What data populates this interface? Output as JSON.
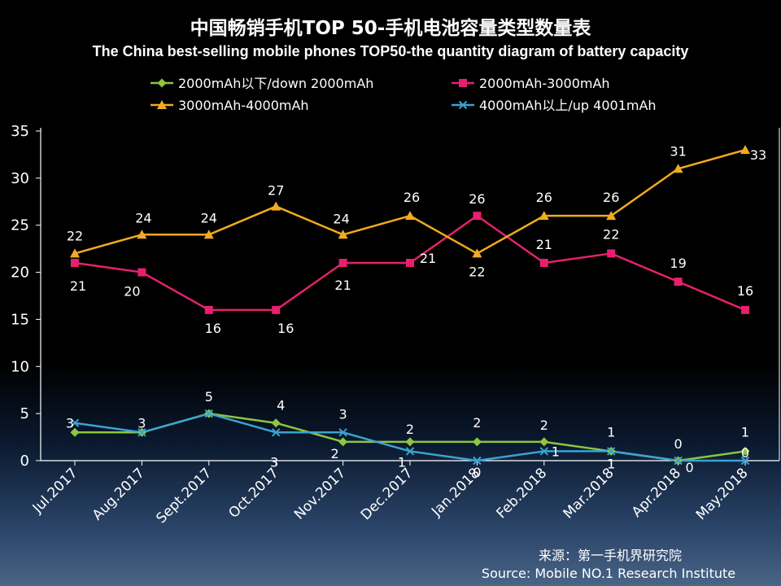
{
  "chart_data": {
    "type": "line",
    "title": "中国畅销手机TOP 50-手机电池容量类型数量表",
    "subtitle": "The China best-selling mobile phones TOP50-the quantity diagram of battery capacity",
    "categories": [
      "Jul.2017",
      "Aug.2017",
      "Sept.2017",
      "Oct.2017",
      "Nov.2017",
      "Dec.2017",
      "Jan.2018",
      "Feb.2018",
      "Mar.2018",
      "Apr.2018",
      "May.2018"
    ],
    "ylim": [
      0,
      35
    ],
    "yticks": [
      0,
      5,
      10,
      15,
      20,
      25,
      30,
      35
    ],
    "grid": false,
    "legend_position": "top",
    "series": [
      {
        "name": "2000mAh以下/down 2000mAh",
        "color": "#8dc63f",
        "marker": "diamond",
        "values": [
          3,
          3,
          5,
          4,
          2,
          2,
          2,
          2,
          1,
          0,
          1
        ]
      },
      {
        "name": "2000mAh-3000mAh",
        "color": "#e6206e",
        "marker": "square",
        "values": [
          21,
          20,
          16,
          16,
          21,
          21,
          26,
          21,
          22,
          19,
          16
        ]
      },
      {
        "name": "3000mAh-4000mAh",
        "color": "#f2ab1e",
        "marker": "triangle",
        "values": [
          22,
          24,
          24,
          27,
          24,
          26,
          22,
          26,
          26,
          31,
          33
        ]
      },
      {
        "name": "4000mAh以上/up 4001mAh",
        "color": "#3aa3d0",
        "marker": "x",
        "values": [
          4,
          3,
          5,
          3,
          3,
          1,
          0,
          1,
          1,
          0,
          0
        ]
      }
    ],
    "data_labels": [
      [
        "3",
        "3",
        "5",
        "4",
        "2",
        "2",
        "2",
        "2",
        "1",
        "0",
        "1"
      ],
      [
        "21",
        "20",
        "16",
        "16",
        "21",
        "21",
        "26",
        "21",
        "22",
        "19",
        "16"
      ],
      [
        "22",
        "24",
        "24",
        "27",
        "24",
        "26",
        "22",
        "26",
        "26",
        "31",
        "33"
      ],
      [
        "",
        "",
        "",
        "3",
        "3",
        "1",
        "0",
        "1",
        "1",
        "0",
        "0"
      ]
    ]
  },
  "source": {
    "cn": "来源：第一手机界研究院",
    "en": "Source: Mobile NO.1 Research Institute"
  }
}
